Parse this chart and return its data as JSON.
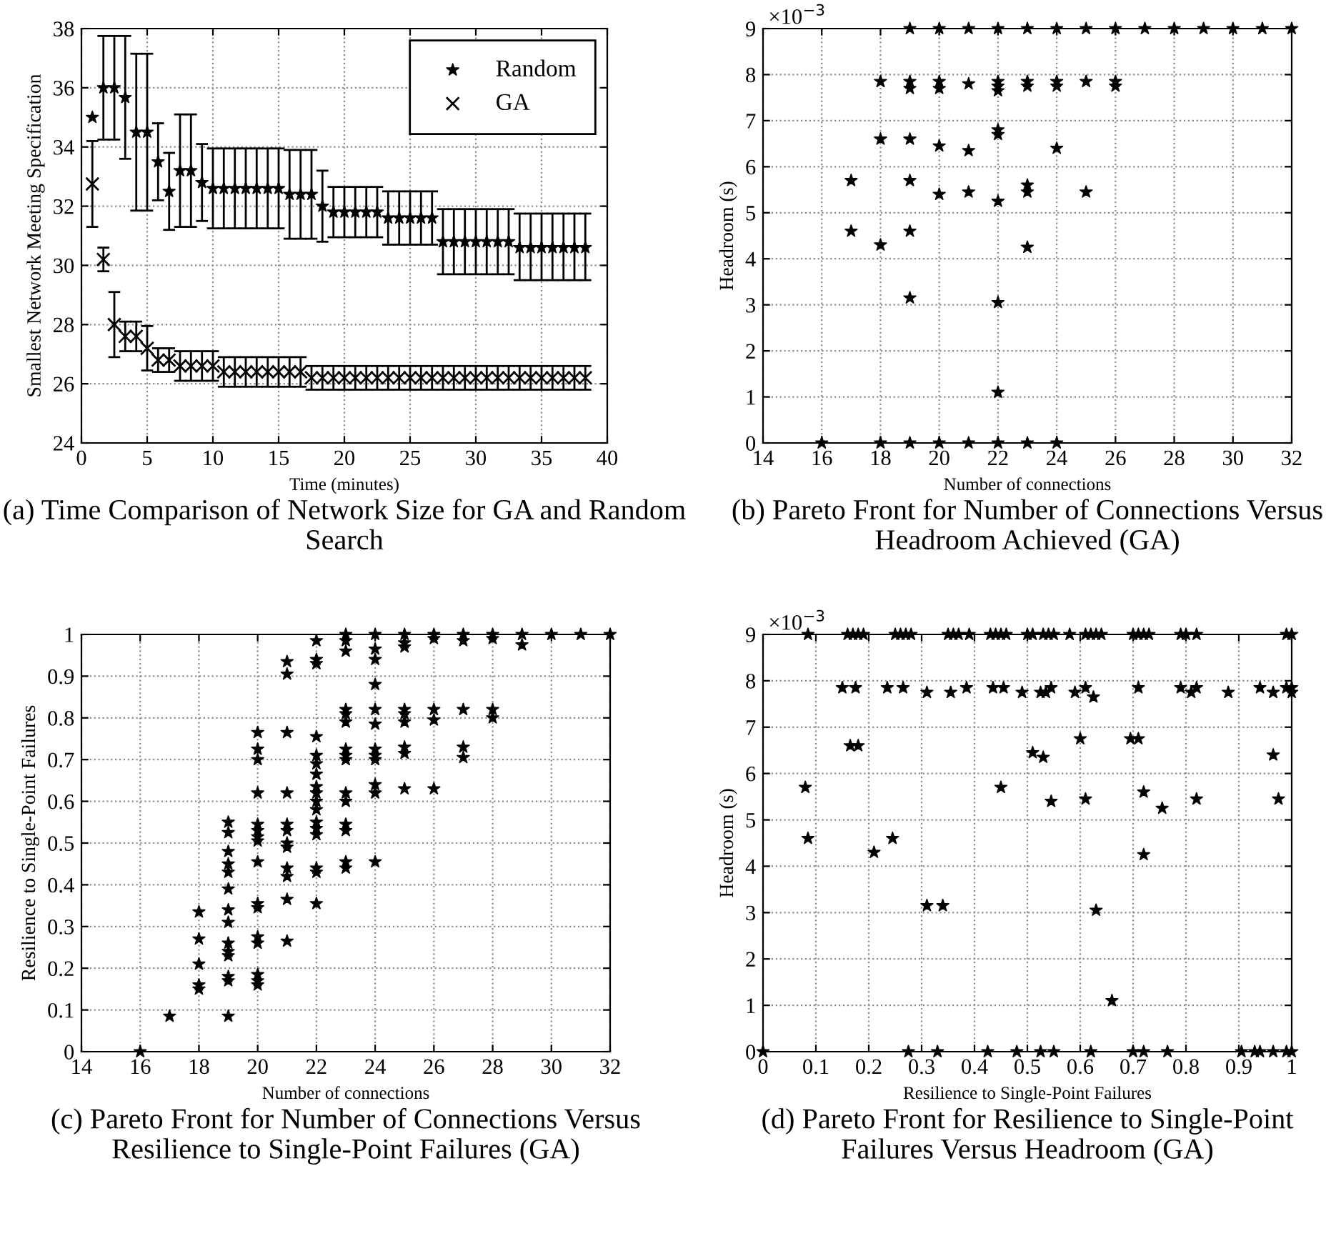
{
  "chart_data": [
    {
      "type": "scatter",
      "title": "(a) Time Comparison of Network Size for GA and Random Search",
      "xlabel": "Time (minutes)",
      "ylabel": "Smallest Network Meeting Specification",
      "x": [
        0.83,
        1.67,
        2.5,
        3.33,
        4.17,
        5,
        5.83,
        6.67,
        7.5,
        8.33,
        9.17,
        10,
        10.83,
        11.67,
        12.5,
        13.33,
        14.17,
        15,
        15.83,
        16.67,
        17.5,
        18.33,
        19.17,
        20,
        20.83,
        21.67,
        22.5,
        23.33,
        24.17,
        25,
        25.83,
        26.67,
        27.5,
        28.33,
        29.17,
        30,
        30.83,
        31.67,
        32.5,
        33.33,
        34.17,
        35,
        35.83,
        36.67,
        37.5,
        38.33
      ],
      "series": [
        {
          "name": "Random",
          "color": "#000000",
          "marker": "star",
          "values": [
            35,
            36,
            36,
            35.67,
            34.5,
            34.5,
            33.5,
            32.5,
            33.2,
            33.2,
            32.8,
            32.6,
            32.6,
            32.6,
            32.6,
            32.6,
            32.6,
            32.6,
            32.4,
            32.4,
            32.4,
            32,
            31.8,
            31.8,
            31.8,
            31.8,
            31.8,
            31.6,
            31.6,
            31.6,
            31.6,
            31.6,
            30.8,
            30.8,
            30.8,
            30.8,
            30.8,
            30.8,
            30.8,
            30.6,
            30.6,
            30.6,
            30.6,
            30.6,
            30.6,
            30.6
          ],
          "errors": [
            null,
            [
              34.25,
              37.75
            ],
            [
              34.25,
              37.75
            ],
            [
              33.6,
              37.75
            ],
            [
              31.85,
              37.15
            ],
            [
              31.85,
              37.15
            ],
            [
              32.2,
              34.8
            ],
            [
              31.2,
              33.8
            ],
            [
              31.3,
              35.1
            ],
            [
              31.3,
              35.1
            ],
            [
              31.5,
              34.1
            ],
            [
              31.25,
              33.95
            ],
            [
              31.25,
              33.95
            ],
            [
              31.25,
              33.95
            ],
            [
              31.25,
              33.95
            ],
            [
              31.25,
              33.95
            ],
            [
              31.25,
              33.95
            ],
            [
              31.25,
              33.95
            ],
            [
              30.9,
              33.9
            ],
            [
              30.9,
              33.9
            ],
            [
              30.9,
              33.9
            ],
            [
              30.8,
              33.2
            ],
            [
              30.95,
              32.65
            ],
            [
              30.95,
              32.65
            ],
            [
              30.95,
              32.65
            ],
            [
              30.95,
              32.65
            ],
            [
              30.95,
              32.65
            ],
            [
              30.7,
              32.5
            ],
            [
              30.7,
              32.5
            ],
            [
              30.7,
              32.5
            ],
            [
              30.7,
              32.5
            ],
            [
              30.7,
              32.5
            ],
            [
              29.7,
              31.9
            ],
            [
              29.7,
              31.9
            ],
            [
              29.7,
              31.9
            ],
            [
              29.7,
              31.9
            ],
            [
              29.7,
              31.9
            ],
            [
              29.7,
              31.9
            ],
            [
              29.7,
              31.9
            ],
            [
              29.5,
              31.75
            ],
            [
              29.5,
              31.75
            ],
            [
              29.5,
              31.75
            ],
            [
              29.5,
              31.75
            ],
            [
              29.5,
              31.75
            ],
            [
              29.5,
              31.75
            ],
            [
              29.5,
              31.75
            ]
          ]
        },
        {
          "name": "GA",
          "color": "#000000",
          "marker": "cross",
          "values": [
            32.75,
            30.2,
            28,
            27.6,
            27.6,
            27.2,
            26.8,
            26.8,
            26.6,
            26.6,
            26.6,
            26.6,
            26.4,
            26.4,
            26.4,
            26.4,
            26.4,
            26.4,
            26.4,
            26.4,
            26.2,
            26.2,
            26.2,
            26.2,
            26.2,
            26.2,
            26.2,
            26.2,
            26.2,
            26.2,
            26.2,
            26.2,
            26.2,
            26.2,
            26.2,
            26.2,
            26.2,
            26.2,
            26.2,
            26.2,
            26.2,
            26.2,
            26.2,
            26.2,
            26.2,
            26.2
          ],
          "errors": [
            [
              31.3,
              34.2
            ],
            [
              29.8,
              30.6
            ],
            [
              26.9,
              29.1
            ],
            [
              27.1,
              28.1
            ],
            [
              27.1,
              28.1
            ],
            [
              26.45,
              27.95
            ],
            [
              26.4,
              27.2
            ],
            [
              26.4,
              27.2
            ],
            [
              26.1,
              27.1
            ],
            [
              26.1,
              27.1
            ],
            [
              26.1,
              27.1
            ],
            [
              26.1,
              27.1
            ],
            [
              25.9,
              26.9
            ],
            [
              25.9,
              26.9
            ],
            [
              25.9,
              26.9
            ],
            [
              25.9,
              26.9
            ],
            [
              25.9,
              26.9
            ],
            [
              25.9,
              26.9
            ],
            [
              25.9,
              26.9
            ],
            [
              25.9,
              26.9
            ],
            [
              25.8,
              26.6
            ],
            [
              25.8,
              26.6
            ],
            [
              25.8,
              26.6
            ],
            [
              25.8,
              26.6
            ],
            [
              25.8,
              26.6
            ],
            [
              25.8,
              26.6
            ],
            [
              25.8,
              26.6
            ],
            [
              25.8,
              26.6
            ],
            [
              25.8,
              26.6
            ],
            [
              25.8,
              26.6
            ],
            [
              25.8,
              26.6
            ],
            [
              25.8,
              26.6
            ],
            [
              25.8,
              26.6
            ],
            [
              25.8,
              26.6
            ],
            [
              25.8,
              26.6
            ],
            [
              25.8,
              26.6
            ],
            [
              25.8,
              26.6
            ],
            [
              25.8,
              26.6
            ],
            [
              25.8,
              26.6
            ],
            [
              25.8,
              26.6
            ],
            [
              25.8,
              26.6
            ],
            [
              25.8,
              26.6
            ],
            [
              25.8,
              26.6
            ],
            [
              25.8,
              26.6
            ],
            [
              25.8,
              26.6
            ],
            [
              25.8,
              26.6
            ]
          ]
        }
      ],
      "xlim": [
        0,
        40
      ],
      "xticks": [
        0,
        5,
        10,
        15,
        20,
        25,
        30,
        35,
        40
      ],
      "ylim": [
        24,
        38
      ],
      "yticks": [
        24,
        26,
        28,
        30,
        32,
        34,
        36,
        38
      ],
      "grid": true,
      "legend": "top right"
    },
    {
      "type": "scatter",
      "title": "(b) Pareto Front for Number of Connections Versus Headroom Achieved (GA)",
      "xlabel": "Number of connections",
      "ylabel": "Headroom (s)",
      "annotations": [
        "×10$^{−3}$"
      ],
      "color": "#000000",
      "marker": "star",
      "x": [
        16,
        17,
        17,
        18,
        18,
        18,
        18,
        19,
        19,
        19,
        19,
        19,
        19,
        19,
        19,
        20,
        20,
        20,
        20,
        20,
        20,
        21,
        21,
        21,
        21,
        21,
        22,
        22,
        22,
        22,
        22,
        22,
        22,
        22,
        22,
        22,
        23,
        23,
        23,
        23,
        23,
        23,
        23,
        24,
        24,
        24,
        24,
        24,
        25,
        25,
        25,
        26,
        26,
        26,
        27,
        28,
        29,
        30,
        31,
        32
      ],
      "values": [
        0,
        5.7,
        4.6,
        7.85,
        6.6,
        4.3,
        0,
        9,
        7.85,
        7.7,
        6.6,
        5.7,
        4.6,
        3.15,
        0,
        9,
        7.85,
        7.7,
        6.45,
        5.4,
        0,
        9,
        7.8,
        6.35,
        5.45,
        0,
        9,
        7.85,
        7.75,
        7.65,
        6.8,
        6.7,
        5.25,
        3.05,
        1.1,
        0,
        9,
        7.85,
        7.75,
        5.6,
        5.45,
        4.25,
        0,
        9,
        7.85,
        7.75,
        6.4,
        0,
        9,
        7.85,
        5.45,
        9,
        7.85,
        7.75,
        9,
        9,
        9,
        9,
        9,
        9
      ],
      "xlim": [
        14,
        32
      ],
      "xticks": [
        14,
        16,
        18,
        20,
        22,
        24,
        26,
        28,
        30,
        32
      ],
      "ylim": [
        0,
        9
      ],
      "yticks": [
        0,
        1,
        2,
        3,
        4,
        5,
        6,
        7,
        8,
        9
      ],
      "grid": true
    },
    {
      "type": "scatter",
      "title": "(c) Pareto Front for Number of Connections Versus Resilience to Single-Point Failures (GA)",
      "xlabel": "Number of connections",
      "ylabel": "Resilience to Single-Point Failures",
      "color": "#000000",
      "marker": "star",
      "x": [
        16,
        17,
        18,
        18,
        18,
        18,
        18,
        19,
        19,
        19,
        19,
        19,
        19,
        19,
        19,
        19,
        19,
        19,
        19,
        19,
        19,
        20,
        20,
        20,
        20,
        20,
        20,
        20,
        20,
        20,
        20,
        20,
        20,
        20,
        20,
        20,
        20,
        21,
        21,
        21,
        21,
        21,
        21,
        21,
        21,
        21,
        21,
        21,
        21,
        22,
        22,
        22,
        22,
        22,
        22,
        22,
        22,
        22,
        22,
        22,
        22,
        22,
        22,
        22,
        22,
        22,
        23,
        23,
        23,
        23,
        23,
        23,
        23,
        23,
        23,
        23,
        23,
        23,
        23,
        23,
        23,
        24,
        24,
        24,
        24,
        24,
        24,
        24,
        24,
        24,
        24,
        24,
        24,
        25,
        25,
        25,
        25,
        25,
        25,
        25,
        25,
        25,
        26,
        26,
        26,
        26,
        26,
        27,
        27,
        27,
        27,
        27,
        28,
        28,
        28,
        28,
        29,
        29,
        30,
        31,
        32
      ],
      "values": [
        0,
        0.085,
        0.335,
        0.27,
        0.21,
        0.16,
        0.15,
        0.55,
        0.525,
        0.48,
        0.45,
        0.43,
        0.39,
        0.34,
        0.31,
        0.26,
        0.24,
        0.23,
        0.18,
        0.17,
        0.085,
        0.765,
        0.725,
        0.7,
        0.62,
        0.545,
        0.53,
        0.515,
        0.505,
        0.455,
        0.355,
        0.345,
        0.275,
        0.26,
        0.185,
        0.17,
        0.16,
        0.935,
        0.905,
        0.765,
        0.62,
        0.545,
        0.53,
        0.5,
        0.49,
        0.44,
        0.42,
        0.365,
        0.265,
        0.985,
        0.94,
        0.93,
        0.755,
        0.71,
        0.69,
        0.665,
        0.635,
        0.62,
        0.6,
        0.58,
        0.55,
        0.535,
        0.52,
        0.44,
        0.43,
        0.355,
        1,
        0.985,
        0.96,
        0.82,
        0.81,
        0.79,
        0.725,
        0.71,
        0.7,
        0.62,
        0.6,
        0.545,
        0.53,
        0.455,
        0.44,
        1,
        0.965,
        0.94,
        0.88,
        0.82,
        0.785,
        0.725,
        0.71,
        0.7,
        0.64,
        0.62,
        0.455,
        1,
        0.98,
        0.97,
        0.82,
        0.81,
        0.79,
        0.73,
        0.715,
        0.63,
        1,
        0.99,
        0.82,
        0.795,
        0.63,
        1,
        0.985,
        0.82,
        0.73,
        0.705,
        1,
        0.99,
        0.82,
        0.8,
        1,
        0.975,
        1,
        1,
        1
      ],
      "xlim": [
        14,
        32
      ],
      "xticks": [
        14,
        16,
        18,
        20,
        22,
        24,
        26,
        28,
        30,
        32
      ],
      "ylim": [
        0,
        1
      ],
      "yticks": [
        0,
        0.1,
        0.2,
        0.3,
        0.4,
        0.5,
        0.6,
        0.7,
        0.8,
        0.9,
        1
      ],
      "grid": true
    },
    {
      "type": "scatter",
      "title": "(d) Pareto Front for Resilience to Single-Point Failures Versus Headroom (GA)",
      "xlabel": "Resilience to Single-Point Failures",
      "ylabel": "Headroom (s)",
      "annotations": [
        "×10$^{−3}$"
      ],
      "color": "#000000",
      "marker": "star",
      "x": [
        0.085,
        0.16,
        0.17,
        0.18,
        0.19,
        0.25,
        0.26,
        0.27,
        0.28,
        0.35,
        0.36,
        0.37,
        0.39,
        0.43,
        0.44,
        0.45,
        0.46,
        0.5,
        0.51,
        0.53,
        0.54,
        0.55,
        0.58,
        0.61,
        0.62,
        0.63,
        0.64,
        0.7,
        0.71,
        0.72,
        0.73,
        0.79,
        0.8,
        0.82,
        0.99,
        1,
        0.15,
        0.175,
        0.235,
        0.265,
        0.385,
        0.435,
        0.455,
        0.545,
        0.61,
        0.71,
        0.79,
        0.82,
        0.94,
        0.99,
        1,
        0.31,
        0.355,
        0.49,
        0.525,
        0.535,
        0.59,
        0.81,
        0.88,
        0.965,
        1,
        0.625,
        0.165,
        0.18,
        0.6,
        0.695,
        0.71,
        0.51,
        0.53,
        0.965,
        0.08,
        0.45,
        0.61,
        0.82,
        0.975,
        0.545,
        0.72,
        0.755,
        0.085,
        0.245,
        0.21,
        0.72,
        0.31,
        0.34,
        0.63,
        0.66,
        0,
        0.275,
        0.33,
        0.425,
        0.48,
        0.525,
        0.55,
        0.62,
        0.7,
        0.72,
        0.765,
        0.905,
        0.93,
        0.94,
        0.965,
        0.99,
        1
      ],
      "values": [
        9,
        9,
        9,
        9,
        9,
        9,
        9,
        9,
        9,
        9,
        9,
        9,
        9,
        9,
        9,
        9,
        9,
        9,
        9,
        9,
        9,
        9,
        9,
        9,
        9,
        9,
        9,
        9,
        9,
        9,
        9,
        9,
        9,
        9,
        9,
        9,
        7.85,
        7.85,
        7.85,
        7.85,
        7.85,
        7.85,
        7.85,
        7.85,
        7.85,
        7.85,
        7.85,
        7.85,
        7.85,
        7.85,
        7.85,
        7.75,
        7.75,
        7.75,
        7.75,
        7.75,
        7.75,
        7.75,
        7.75,
        7.75,
        7.75,
        7.65,
        6.6,
        6.6,
        6.75,
        6.75,
        6.75,
        6.45,
        6.35,
        6.4,
        5.7,
        5.7,
        5.45,
        5.45,
        5.45,
        5.4,
        5.6,
        5.25,
        4.6,
        4.6,
        4.3,
        4.25,
        3.15,
        3.15,
        3.05,
        1.1,
        0,
        0,
        0,
        0,
        0,
        0,
        0,
        0,
        0,
        0,
        0,
        0,
        0,
        0,
        0,
        0,
        0
      ],
      "xlim": [
        0,
        1
      ],
      "xticks": [
        0,
        0.1,
        0.2,
        0.3,
        0.4,
        0.5,
        0.6,
        0.7,
        0.8,
        0.9,
        1
      ],
      "ylim": [
        0,
        9
      ],
      "yticks": [
        0,
        1,
        2,
        3,
        4,
        5,
        6,
        7,
        8,
        9
      ],
      "grid": true
    }
  ]
}
